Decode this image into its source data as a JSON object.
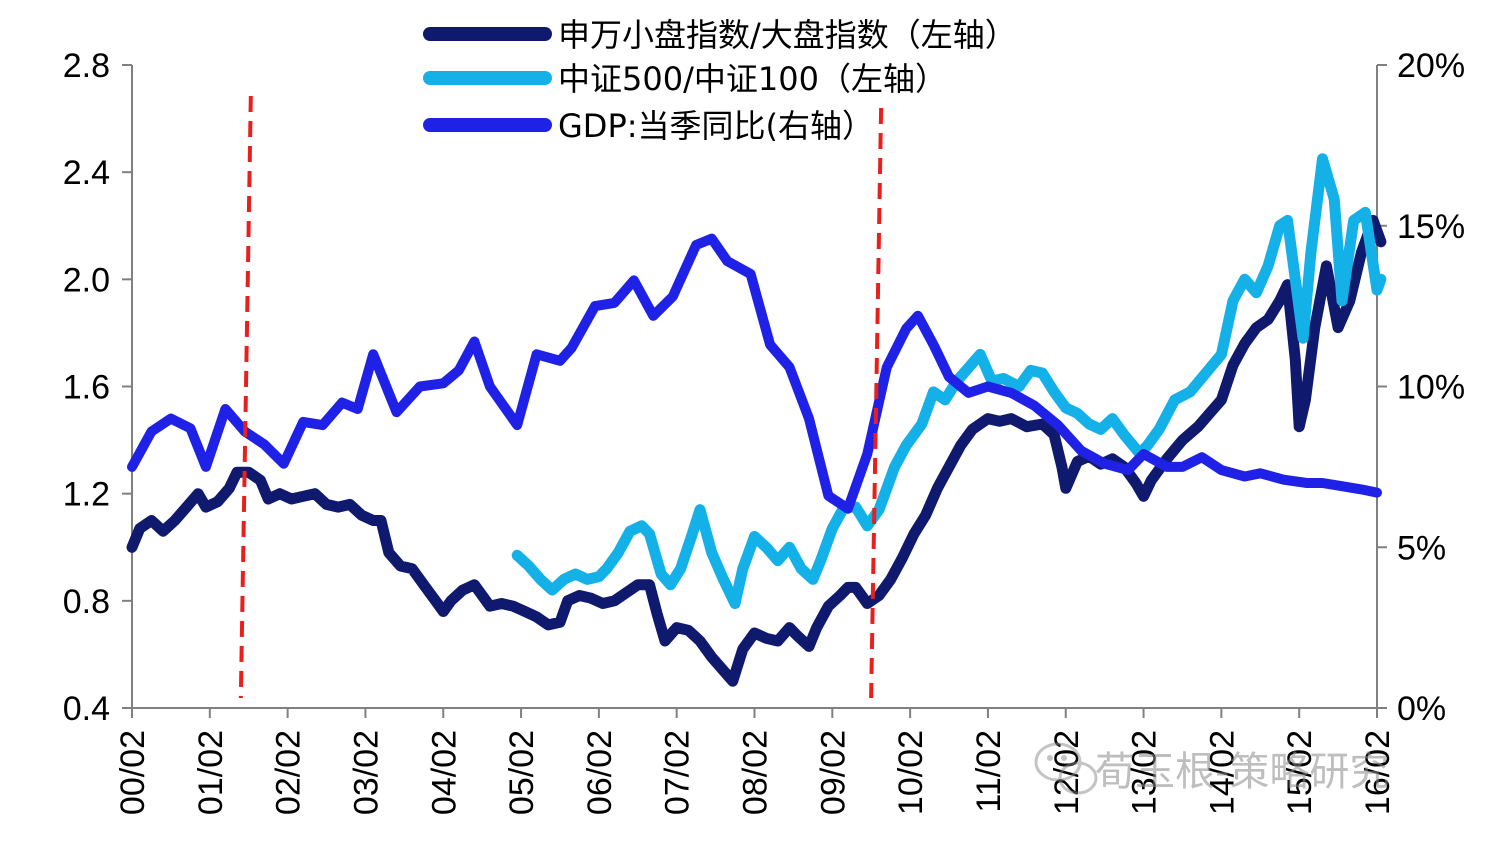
{
  "chart_data": {
    "type": "line",
    "x_tick_labels": [
      "00/02",
      "01/02",
      "02/02",
      "03/02",
      "04/02",
      "05/02",
      "06/02",
      "07/02",
      "08/02",
      "09/02",
      "10/02",
      "11/02",
      "12/02",
      "13/02",
      "14/02",
      "15/02",
      "16/02"
    ],
    "left_axis": {
      "ylim": [
        0.4,
        2.8
      ],
      "ticks": [
        "0.4",
        "0.8",
        "1.2",
        "1.6",
        "2.0",
        "2.4",
        "2.8"
      ]
    },
    "right_axis": {
      "ylim": [
        0,
        20
      ],
      "ticks": [
        "0%",
        "5%",
        "10%",
        "15%",
        "20%"
      ]
    },
    "legend_placement": "top-center",
    "vertical_markers": {
      "color": "#e8201c",
      "style": "dashed",
      "dates": [
        2001.45,
        2009.55
      ]
    },
    "series": [
      {
        "name": "申万小盘指数/大盘指数（左轴）",
        "axis": "left",
        "color": "#0f1a6e",
        "points": [
          [
            2000.0,
            1.0
          ],
          [
            2000.1,
            1.07
          ],
          [
            2000.25,
            1.1
          ],
          [
            2000.4,
            1.06
          ],
          [
            2000.55,
            1.1
          ],
          [
            2000.7,
            1.15
          ],
          [
            2000.85,
            1.2
          ],
          [
            2000.95,
            1.15
          ],
          [
            2001.1,
            1.17
          ],
          [
            2001.25,
            1.22
          ],
          [
            2001.35,
            1.28
          ],
          [
            2001.5,
            1.28
          ],
          [
            2001.65,
            1.25
          ],
          [
            2001.75,
            1.18
          ],
          [
            2001.9,
            1.2
          ],
          [
            2002.05,
            1.18
          ],
          [
            2002.2,
            1.19
          ],
          [
            2002.35,
            1.2
          ],
          [
            2002.5,
            1.16
          ],
          [
            2002.65,
            1.15
          ],
          [
            2002.8,
            1.16
          ],
          [
            2002.95,
            1.12
          ],
          [
            2003.1,
            1.1
          ],
          [
            2003.2,
            1.1
          ],
          [
            2003.3,
            0.98
          ],
          [
            2003.45,
            0.93
          ],
          [
            2003.6,
            0.92
          ],
          [
            2003.75,
            0.86
          ],
          [
            2003.9,
            0.8
          ],
          [
            2004.0,
            0.76
          ],
          [
            2004.1,
            0.8
          ],
          [
            2004.25,
            0.84
          ],
          [
            2004.4,
            0.86
          ],
          [
            2004.5,
            0.82
          ],
          [
            2004.6,
            0.78
          ],
          [
            2004.75,
            0.79
          ],
          [
            2004.9,
            0.78
          ],
          [
            2005.05,
            0.76
          ],
          [
            2005.2,
            0.74
          ],
          [
            2005.35,
            0.71
          ],
          [
            2005.5,
            0.72
          ],
          [
            2005.6,
            0.8
          ],
          [
            2005.75,
            0.82
          ],
          [
            2005.9,
            0.81
          ],
          [
            2006.05,
            0.79
          ],
          [
            2006.2,
            0.8
          ],
          [
            2006.35,
            0.83
          ],
          [
            2006.5,
            0.86
          ],
          [
            2006.65,
            0.86
          ],
          [
            2006.75,
            0.75
          ],
          [
            2006.85,
            0.65
          ],
          [
            2007.0,
            0.7
          ],
          [
            2007.15,
            0.69
          ],
          [
            2007.3,
            0.65
          ],
          [
            2007.45,
            0.59
          ],
          [
            2007.6,
            0.54
          ],
          [
            2007.72,
            0.5
          ],
          [
            2007.85,
            0.62
          ],
          [
            2008.0,
            0.68
          ],
          [
            2008.15,
            0.66
          ],
          [
            2008.3,
            0.65
          ],
          [
            2008.45,
            0.7
          ],
          [
            2008.55,
            0.67
          ],
          [
            2008.7,
            0.63
          ],
          [
            2008.8,
            0.7
          ],
          [
            2008.95,
            0.78
          ],
          [
            2009.1,
            0.82
          ],
          [
            2009.2,
            0.85
          ],
          [
            2009.3,
            0.85
          ],
          [
            2009.45,
            0.79
          ],
          [
            2009.6,
            0.82
          ],
          [
            2009.75,
            0.88
          ],
          [
            2009.9,
            0.96
          ],
          [
            2010.05,
            1.05
          ],
          [
            2010.2,
            1.12
          ],
          [
            2010.35,
            1.22
          ],
          [
            2010.5,
            1.3
          ],
          [
            2010.65,
            1.38
          ],
          [
            2010.8,
            1.44
          ],
          [
            2011.0,
            1.48
          ],
          [
            2011.15,
            1.47
          ],
          [
            2011.3,
            1.48
          ],
          [
            2011.5,
            1.45
          ],
          [
            2011.7,
            1.46
          ],
          [
            2011.85,
            1.42
          ],
          [
            2011.95,
            1.3
          ],
          [
            2012.0,
            1.22
          ],
          [
            2012.15,
            1.32
          ],
          [
            2012.3,
            1.34
          ],
          [
            2012.45,
            1.31
          ],
          [
            2012.6,
            1.33
          ],
          [
            2012.75,
            1.3
          ],
          [
            2012.9,
            1.24
          ],
          [
            2013.0,
            1.19
          ],
          [
            2013.1,
            1.25
          ],
          [
            2013.3,
            1.33
          ],
          [
            2013.5,
            1.4
          ],
          [
            2013.7,
            1.45
          ],
          [
            2013.85,
            1.5
          ],
          [
            2014.0,
            1.55
          ],
          [
            2014.15,
            1.68
          ],
          [
            2014.3,
            1.76
          ],
          [
            2014.45,
            1.82
          ],
          [
            2014.6,
            1.85
          ],
          [
            2014.75,
            1.92
          ],
          [
            2014.85,
            1.98
          ],
          [
            2014.95,
            1.7
          ],
          [
            2015.0,
            1.45
          ],
          [
            2015.08,
            1.55
          ],
          [
            2015.2,
            1.82
          ],
          [
            2015.35,
            2.05
          ],
          [
            2015.5,
            1.82
          ],
          [
            2015.65,
            1.92
          ],
          [
            2015.8,
            2.1
          ],
          [
            2015.95,
            2.22
          ],
          [
            2016.05,
            2.14
          ]
        ]
      },
      {
        "name": "中证500/中证100（左轴）",
        "axis": "left",
        "color": "#13b1e8",
        "points": [
          [
            2004.95,
            0.97
          ],
          [
            2005.1,
            0.93
          ],
          [
            2005.25,
            0.88
          ],
          [
            2005.4,
            0.84
          ],
          [
            2005.55,
            0.88
          ],
          [
            2005.7,
            0.9
          ],
          [
            2005.85,
            0.88
          ],
          [
            2006.0,
            0.89
          ],
          [
            2006.1,
            0.92
          ],
          [
            2006.25,
            0.98
          ],
          [
            2006.4,
            1.06
          ],
          [
            2006.55,
            1.08
          ],
          [
            2006.65,
            1.05
          ],
          [
            2006.8,
            0.9
          ],
          [
            2006.92,
            0.86
          ],
          [
            2007.05,
            0.92
          ],
          [
            2007.2,
            1.05
          ],
          [
            2007.3,
            1.14
          ],
          [
            2007.45,
            0.98
          ],
          [
            2007.6,
            0.88
          ],
          [
            2007.75,
            0.79
          ],
          [
            2007.85,
            0.92
          ],
          [
            2008.0,
            1.04
          ],
          [
            2008.15,
            1.0
          ],
          [
            2008.3,
            0.95
          ],
          [
            2008.45,
            1.0
          ],
          [
            2008.6,
            0.92
          ],
          [
            2008.75,
            0.88
          ],
          [
            2008.85,
            0.95
          ],
          [
            2009.0,
            1.07
          ],
          [
            2009.15,
            1.15
          ],
          [
            2009.3,
            1.15
          ],
          [
            2009.45,
            1.08
          ],
          [
            2009.6,
            1.14
          ],
          [
            2009.8,
            1.3
          ],
          [
            2009.95,
            1.38
          ],
          [
            2010.15,
            1.46
          ],
          [
            2010.3,
            1.58
          ],
          [
            2010.45,
            1.55
          ],
          [
            2010.6,
            1.62
          ],
          [
            2010.75,
            1.67
          ],
          [
            2010.9,
            1.72
          ],
          [
            2011.05,
            1.62
          ],
          [
            2011.2,
            1.63
          ],
          [
            2011.4,
            1.6
          ],
          [
            2011.55,
            1.66
          ],
          [
            2011.7,
            1.65
          ],
          [
            2011.85,
            1.58
          ],
          [
            2012.0,
            1.52
          ],
          [
            2012.15,
            1.5
          ],
          [
            2012.3,
            1.46
          ],
          [
            2012.45,
            1.44
          ],
          [
            2012.6,
            1.48
          ],
          [
            2012.75,
            1.42
          ],
          [
            2012.95,
            1.35
          ],
          [
            2013.05,
            1.38
          ],
          [
            2013.2,
            1.44
          ],
          [
            2013.4,
            1.55
          ],
          [
            2013.6,
            1.58
          ],
          [
            2013.8,
            1.65
          ],
          [
            2014.0,
            1.72
          ],
          [
            2014.15,
            1.92
          ],
          [
            2014.3,
            2.0
          ],
          [
            2014.45,
            1.95
          ],
          [
            2014.6,
            2.05
          ],
          [
            2014.75,
            2.2
          ],
          [
            2014.85,
            2.22
          ],
          [
            2014.95,
            2.0
          ],
          [
            2015.05,
            1.78
          ],
          [
            2015.15,
            2.1
          ],
          [
            2015.3,
            2.45
          ],
          [
            2015.45,
            2.3
          ],
          [
            2015.55,
            1.92
          ],
          [
            2015.7,
            2.22
          ],
          [
            2015.85,
            2.25
          ],
          [
            2016.0,
            1.96
          ],
          [
            2016.05,
            2.0
          ]
        ]
      },
      {
        "name": "GDP:当季同比(右轴）",
        "axis": "right",
        "color": "#1f22e6",
        "points": [
          [
            2000.0,
            7.5
          ],
          [
            2000.25,
            8.6
          ],
          [
            2000.5,
            9.0
          ],
          [
            2000.75,
            8.7
          ],
          [
            2000.95,
            7.5
          ],
          [
            2001.2,
            9.3
          ],
          [
            2001.45,
            8.6
          ],
          [
            2001.7,
            8.2
          ],
          [
            2001.95,
            7.6
          ],
          [
            2002.2,
            8.9
          ],
          [
            2002.45,
            8.8
          ],
          [
            2002.7,
            9.5
          ],
          [
            2002.9,
            9.3
          ],
          [
            2003.1,
            11.0
          ],
          [
            2003.4,
            9.2
          ],
          [
            2003.7,
            10.0
          ],
          [
            2004.0,
            10.1
          ],
          [
            2004.2,
            10.5
          ],
          [
            2004.4,
            11.4
          ],
          [
            2004.6,
            10.0
          ],
          [
            2004.95,
            8.8
          ],
          [
            2005.2,
            11.0
          ],
          [
            2005.5,
            10.8
          ],
          [
            2005.65,
            11.2
          ],
          [
            2005.95,
            12.5
          ],
          [
            2006.2,
            12.6
          ],
          [
            2006.45,
            13.3
          ],
          [
            2006.7,
            12.2
          ],
          [
            2006.95,
            12.8
          ],
          [
            2007.25,
            14.4
          ],
          [
            2007.45,
            14.6
          ],
          [
            2007.65,
            13.9
          ],
          [
            2007.95,
            13.5
          ],
          [
            2008.2,
            11.3
          ],
          [
            2008.45,
            10.6
          ],
          [
            2008.7,
            9.0
          ],
          [
            2008.95,
            6.6
          ],
          [
            2009.2,
            6.2
          ],
          [
            2009.45,
            7.9
          ],
          [
            2009.7,
            10.6
          ],
          [
            2009.95,
            11.8
          ],
          [
            2010.1,
            12.2
          ],
          [
            2010.3,
            11.3
          ],
          [
            2010.5,
            10.3
          ],
          [
            2010.75,
            9.8
          ],
          [
            2011.0,
            10.0
          ],
          [
            2011.3,
            9.8
          ],
          [
            2011.6,
            9.4
          ],
          [
            2011.9,
            8.8
          ],
          [
            2012.2,
            8.0
          ],
          [
            2012.5,
            7.6
          ],
          [
            2012.8,
            7.4
          ],
          [
            2013.0,
            7.9
          ],
          [
            2013.3,
            7.5
          ],
          [
            2013.5,
            7.5
          ],
          [
            2013.75,
            7.8
          ],
          [
            2014.0,
            7.4
          ],
          [
            2014.3,
            7.2
          ],
          [
            2014.5,
            7.3
          ],
          [
            2014.8,
            7.1
          ],
          [
            2015.1,
            7.0
          ],
          [
            2015.3,
            7.0
          ],
          [
            2015.55,
            6.9
          ],
          [
            2015.8,
            6.8
          ],
          [
            2016.0,
            6.7
          ]
        ]
      }
    ]
  },
  "watermark": {
    "text": "荀玉根-策略研究",
    "icon": "wechat-icon"
  }
}
